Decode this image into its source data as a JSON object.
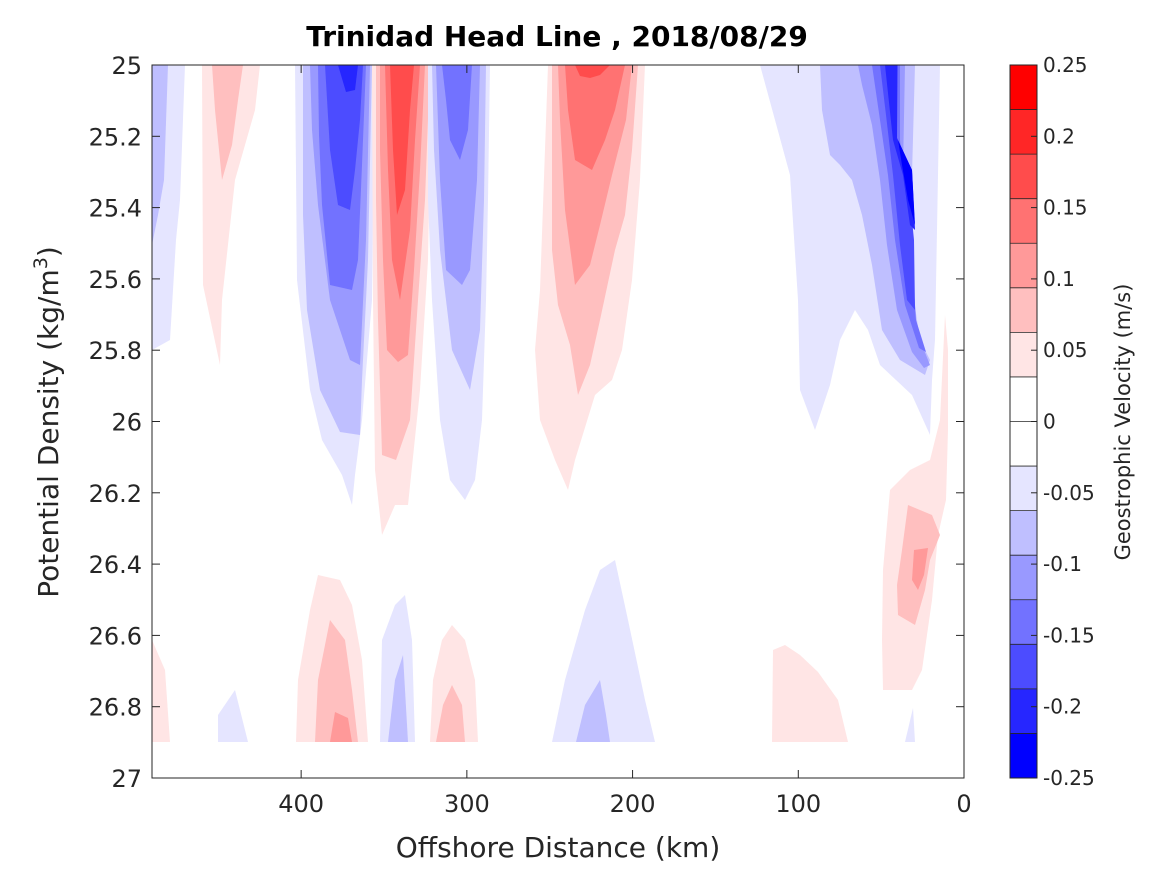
{
  "chart_data": {
    "type": "heatmap",
    "title": "Trinidad Head Line , 2018/08/29",
    "xlabel": "Offshore Distance (km)",
    "ylabel_main": "Potential Density (kg/m",
    "ylabel_sup": "3",
    "ylabel_close": ")",
    "xlim": [
      490,
      0
    ],
    "ylim": [
      25,
      27
    ],
    "x_ticks": [
      400,
      300,
      200,
      100,
      0
    ],
    "x_tick_labels": [
      "400",
      "300",
      "200",
      "100",
      "0"
    ],
    "y_ticks": [
      25,
      25.2,
      25.4,
      25.6,
      25.8,
      26,
      26.2,
      26.4,
      26.6,
      26.8,
      27
    ],
    "y_tick_labels": [
      "25",
      "25.2",
      "25.4",
      "25.6",
      "25.8",
      "26",
      "26.2",
      "26.4",
      "26.6",
      "26.8",
      "27"
    ],
    "colorbar": {
      "label": "Geostrophic Velocity (m/s)",
      "range": [
        -0.25,
        0.25
      ],
      "tick_values": [
        0.25,
        0.2,
        0.15,
        0.1,
        0.05,
        0,
        -0.05,
        -0.1,
        -0.15,
        -0.2,
        -0.25
      ],
      "tick_labels": [
        "0.25",
        "0.2",
        "0.15",
        "0.1",
        "0.05",
        "0",
        "-0.05",
        "-0.1",
        "-0.15",
        "-0.2",
        "-0.25"
      ],
      "level_colors": [
        "#ff0000",
        "#ff2626",
        "#ff4c4c",
        "#ff7272",
        "#ff9999",
        "#ffbfbf",
        "#ffe5e5",
        "#ffffff",
        "#ffffff",
        "#e5e5ff",
        "#bfbfff",
        "#9999ff",
        "#7272ff",
        "#4c4cff",
        "#2626ff",
        "#0000ff"
      ]
    },
    "features": [
      {
        "x": 482,
        "y": 25.3,
        "velocity": -0.05
      },
      {
        "x": 445,
        "y": 25.3,
        "velocity": 0.05
      },
      {
        "x": 375,
        "y": 25.3,
        "velocity": -0.2
      },
      {
        "x": 340,
        "y": 25.3,
        "velocity": 0.2
      },
      {
        "x": 310,
        "y": 25.3,
        "velocity": -0.15
      },
      {
        "x": 225,
        "y": 25.2,
        "velocity": 0.15
      },
      {
        "x": 70,
        "y": 25.5,
        "velocity": -0.05
      },
      {
        "x": 30,
        "y": 25.4,
        "velocity": -0.2
      },
      {
        "x": 380,
        "y": 26.8,
        "velocity": 0.1
      },
      {
        "x": 300,
        "y": 26.8,
        "velocity": 0.05
      },
      {
        "x": 225,
        "y": 26.8,
        "velocity": -0.1
      },
      {
        "x": 95,
        "y": 26.8,
        "velocity": 0.05
      },
      {
        "x": 30,
        "y": 26.45,
        "velocity": 0.1
      }
    ]
  }
}
